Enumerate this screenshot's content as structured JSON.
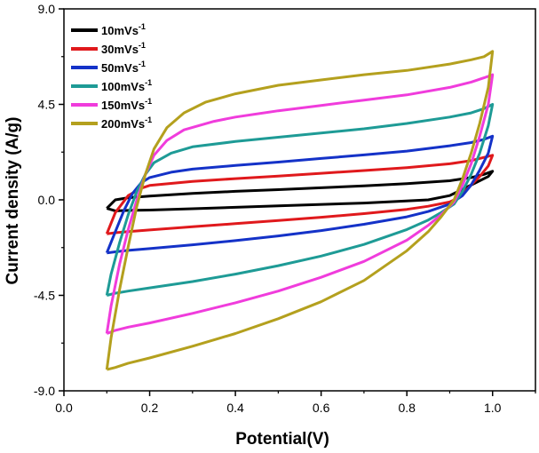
{
  "chart_data": {
    "type": "line",
    "title": "",
    "xlabel": "Potential(V)",
    "ylabel": "Current density (A/g)",
    "xlim": [
      0.0,
      1.1
    ],
    "ylim": [
      -9.0,
      9.0
    ],
    "xticks": [
      "0.0",
      "0.2",
      "0.4",
      "0.6",
      "0.8",
      "1.0"
    ],
    "yticks": [
      "9.0",
      "4.5",
      "0.0",
      "-4.5",
      "-9.0"
    ],
    "legend_position": "top-left",
    "series": [
      {
        "name": "10mVs-1",
        "label_main": "10mVs",
        "label_sup": "-1",
        "color": "#000000",
        "anodic": [
          [
            0.1,
            -0.4
          ],
          [
            0.12,
            0.0
          ],
          [
            0.15,
            0.1
          ],
          [
            0.2,
            0.18
          ],
          [
            0.3,
            0.3
          ],
          [
            0.4,
            0.4
          ],
          [
            0.5,
            0.48
          ],
          [
            0.6,
            0.57
          ],
          [
            0.7,
            0.66
          ],
          [
            0.8,
            0.76
          ],
          [
            0.9,
            0.9
          ],
          [
            0.95,
            1.05
          ],
          [
            0.98,
            1.2
          ],
          [
            1.0,
            1.35
          ]
        ],
        "cathodic": [
          [
            1.0,
            1.35
          ],
          [
            0.99,
            1.1
          ],
          [
            0.97,
            0.9
          ],
          [
            0.93,
            0.5
          ],
          [
            0.9,
            0.2
          ],
          [
            0.85,
            0.0
          ],
          [
            0.7,
            -0.15
          ],
          [
            0.5,
            -0.28
          ],
          [
            0.3,
            -0.42
          ],
          [
            0.2,
            -0.48
          ],
          [
            0.15,
            -0.5
          ],
          [
            0.12,
            -0.52
          ],
          [
            0.1,
            -0.4
          ]
        ]
      },
      {
        "name": "30mVs-1",
        "label_main": "30mVs",
        "label_sup": "-1",
        "color": "#e0191c",
        "anodic": [
          [
            0.1,
            -1.6
          ],
          [
            0.12,
            -0.6
          ],
          [
            0.15,
            0.2
          ],
          [
            0.18,
            0.55
          ],
          [
            0.2,
            0.68
          ],
          [
            0.3,
            0.87
          ],
          [
            0.4,
            1.0
          ],
          [
            0.5,
            1.12
          ],
          [
            0.6,
            1.25
          ],
          [
            0.7,
            1.38
          ],
          [
            0.8,
            1.52
          ],
          [
            0.9,
            1.7
          ],
          [
            0.95,
            1.85
          ],
          [
            0.98,
            2.0
          ],
          [
            1.0,
            2.1
          ]
        ],
        "cathodic": [
          [
            1.0,
            2.1
          ],
          [
            0.99,
            1.6
          ],
          [
            0.97,
            1.1
          ],
          [
            0.94,
            0.5
          ],
          [
            0.92,
            0.1
          ],
          [
            0.9,
            -0.1
          ],
          [
            0.85,
            -0.3
          ],
          [
            0.8,
            -0.45
          ],
          [
            0.7,
            -0.65
          ],
          [
            0.6,
            -0.82
          ],
          [
            0.5,
            -0.97
          ],
          [
            0.4,
            -1.12
          ],
          [
            0.3,
            -1.27
          ],
          [
            0.2,
            -1.42
          ],
          [
            0.15,
            -1.5
          ],
          [
            0.12,
            -1.55
          ],
          [
            0.1,
            -1.6
          ]
        ]
      },
      {
        "name": "50mVs-1",
        "label_main": "50mVs",
        "label_sup": "-1",
        "color": "#1432c8",
        "anodic": [
          [
            0.1,
            -2.5
          ],
          [
            0.12,
            -1.5
          ],
          [
            0.14,
            -0.5
          ],
          [
            0.16,
            0.3
          ],
          [
            0.18,
            0.8
          ],
          [
            0.2,
            1.05
          ],
          [
            0.25,
            1.3
          ],
          [
            0.3,
            1.45
          ],
          [
            0.4,
            1.62
          ],
          [
            0.5,
            1.78
          ],
          [
            0.6,
            1.95
          ],
          [
            0.7,
            2.12
          ],
          [
            0.8,
            2.3
          ],
          [
            0.9,
            2.55
          ],
          [
            0.95,
            2.7
          ],
          [
            0.98,
            2.85
          ],
          [
            1.0,
            3.0
          ]
        ],
        "cathodic": [
          [
            1.0,
            3.0
          ],
          [
            0.99,
            2.2
          ],
          [
            0.97,
            1.4
          ],
          [
            0.95,
            0.7
          ],
          [
            0.93,
            0.2
          ],
          [
            0.9,
            -0.2
          ],
          [
            0.85,
            -0.55
          ],
          [
            0.8,
            -0.8
          ],
          [
            0.7,
            -1.15
          ],
          [
            0.6,
            -1.45
          ],
          [
            0.5,
            -1.7
          ],
          [
            0.4,
            -1.92
          ],
          [
            0.3,
            -2.12
          ],
          [
            0.2,
            -2.3
          ],
          [
            0.15,
            -2.38
          ],
          [
            0.12,
            -2.45
          ],
          [
            0.1,
            -2.5
          ]
        ]
      },
      {
        "name": "100mVs-1",
        "label_main": "100mVs",
        "label_sup": "-1",
        "color": "#1e9b96",
        "anodic": [
          [
            0.1,
            -4.5
          ],
          [
            0.11,
            -3.5
          ],
          [
            0.13,
            -2.0
          ],
          [
            0.15,
            -0.7
          ],
          [
            0.17,
            0.4
          ],
          [
            0.19,
            1.2
          ],
          [
            0.21,
            1.75
          ],
          [
            0.25,
            2.2
          ],
          [
            0.3,
            2.5
          ],
          [
            0.4,
            2.75
          ],
          [
            0.5,
            2.95
          ],
          [
            0.6,
            3.15
          ],
          [
            0.7,
            3.35
          ],
          [
            0.8,
            3.6
          ],
          [
            0.9,
            3.9
          ],
          [
            0.95,
            4.1
          ],
          [
            0.98,
            4.3
          ],
          [
            1.0,
            4.5
          ]
        ],
        "cathodic": [
          [
            1.0,
            4.5
          ],
          [
            0.99,
            3.5
          ],
          [
            0.97,
            2.2
          ],
          [
            0.95,
            1.2
          ],
          [
            0.93,
            0.4
          ],
          [
            0.91,
            -0.2
          ],
          [
            0.88,
            -0.6
          ],
          [
            0.85,
            -0.95
          ],
          [
            0.8,
            -1.4
          ],
          [
            0.7,
            -2.1
          ],
          [
            0.6,
            -2.65
          ],
          [
            0.5,
            -3.1
          ],
          [
            0.4,
            -3.5
          ],
          [
            0.3,
            -3.85
          ],
          [
            0.2,
            -4.15
          ],
          [
            0.15,
            -4.3
          ],
          [
            0.12,
            -4.4
          ],
          [
            0.1,
            -4.5
          ]
        ]
      },
      {
        "name": "150mVs-1",
        "label_main": "150mVs",
        "label_sup": "-1",
        "color": "#f03cdc",
        "anodic": [
          [
            0.1,
            -6.3
          ],
          [
            0.11,
            -5.0
          ],
          [
            0.13,
            -3.0
          ],
          [
            0.15,
            -1.4
          ],
          [
            0.17,
            0.0
          ],
          [
            0.19,
            1.2
          ],
          [
            0.21,
            2.1
          ],
          [
            0.24,
            2.8
          ],
          [
            0.28,
            3.3
          ],
          [
            0.35,
            3.7
          ],
          [
            0.4,
            3.9
          ],
          [
            0.5,
            4.2
          ],
          [
            0.6,
            4.45
          ],
          [
            0.7,
            4.7
          ],
          [
            0.8,
            4.95
          ],
          [
            0.9,
            5.3
          ],
          [
            0.95,
            5.55
          ],
          [
            0.98,
            5.75
          ],
          [
            1.0,
            5.9
          ]
        ],
        "cathodic": [
          [
            1.0,
            5.9
          ],
          [
            0.99,
            4.5
          ],
          [
            0.97,
            3.0
          ],
          [
            0.95,
            1.7
          ],
          [
            0.93,
            0.7
          ],
          [
            0.91,
            -0.1
          ],
          [
            0.88,
            -0.7
          ],
          [
            0.85,
            -1.2
          ],
          [
            0.8,
            -1.9
          ],
          [
            0.7,
            -2.9
          ],
          [
            0.6,
            -3.65
          ],
          [
            0.5,
            -4.3
          ],
          [
            0.4,
            -4.85
          ],
          [
            0.3,
            -5.35
          ],
          [
            0.2,
            -5.8
          ],
          [
            0.15,
            -6.0
          ],
          [
            0.12,
            -6.15
          ],
          [
            0.1,
            -6.3
          ]
        ]
      },
      {
        "name": "200mVs-1",
        "label_main": "200mVs",
        "label_sup": "-1",
        "color": "#b4a01e",
        "anodic": [
          [
            0.1,
            -8.0
          ],
          [
            0.11,
            -6.5
          ],
          [
            0.13,
            -4.2
          ],
          [
            0.15,
            -2.2
          ],
          [
            0.17,
            -0.3
          ],
          [
            0.19,
            1.2
          ],
          [
            0.21,
            2.4
          ],
          [
            0.24,
            3.4
          ],
          [
            0.28,
            4.1
          ],
          [
            0.33,
            4.6
          ],
          [
            0.4,
            5.0
          ],
          [
            0.5,
            5.4
          ],
          [
            0.6,
            5.65
          ],
          [
            0.7,
            5.9
          ],
          [
            0.8,
            6.1
          ],
          [
            0.9,
            6.4
          ],
          [
            0.95,
            6.6
          ],
          [
            0.98,
            6.75
          ],
          [
            1.0,
            7.0
          ]
        ],
        "cathodic": [
          [
            1.0,
            7.0
          ],
          [
            0.99,
            5.3
          ],
          [
            0.97,
            3.6
          ],
          [
            0.95,
            2.2
          ],
          [
            0.93,
            1.0
          ],
          [
            0.91,
            0.0
          ],
          [
            0.88,
            -0.8
          ],
          [
            0.85,
            -1.5
          ],
          [
            0.8,
            -2.4
          ],
          [
            0.7,
            -3.8
          ],
          [
            0.6,
            -4.8
          ],
          [
            0.5,
            -5.6
          ],
          [
            0.4,
            -6.3
          ],
          [
            0.3,
            -6.9
          ],
          [
            0.2,
            -7.45
          ],
          [
            0.15,
            -7.7
          ],
          [
            0.12,
            -7.9
          ],
          [
            0.1,
            -8.0
          ]
        ]
      }
    ]
  }
}
